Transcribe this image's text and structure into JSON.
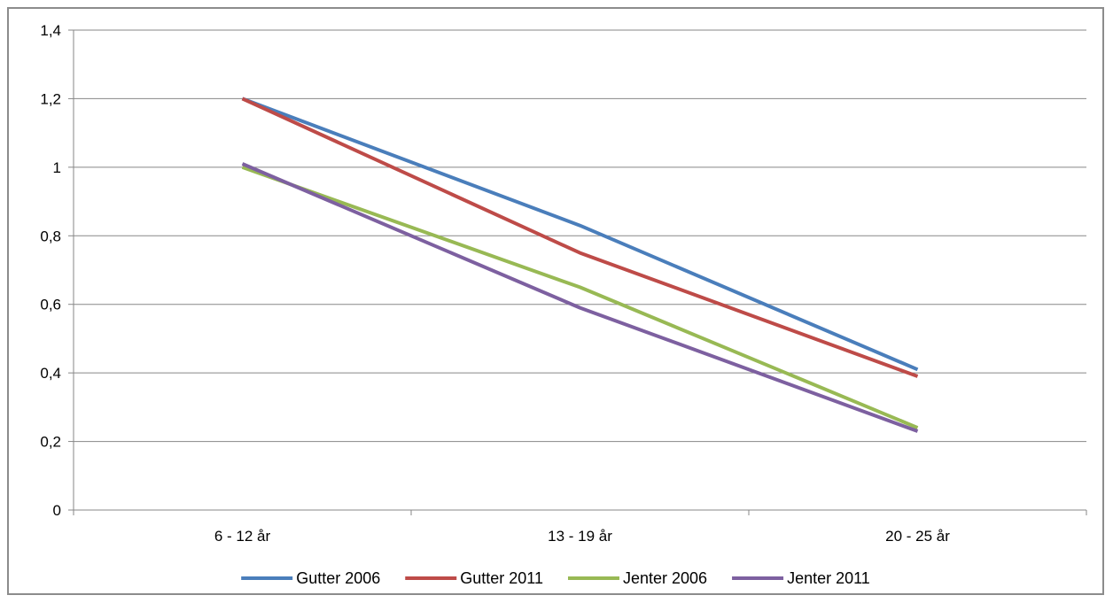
{
  "chart_data": {
    "type": "line",
    "title": "",
    "xlabel": "",
    "ylabel": "",
    "categories": [
      "6 - 12 år",
      "13 - 19 år",
      "20 - 25 år"
    ],
    "ylim": [
      0,
      1.4
    ],
    "y_ticks": [
      0,
      0.2,
      0.4,
      0.6,
      0.8,
      1,
      1.2,
      1.4
    ],
    "y_tick_labels": [
      "0",
      "0,2",
      "0,4",
      "0,6",
      "0,8",
      "1",
      "1,2",
      "1,4"
    ],
    "grid": true,
    "legend_position": "bottom",
    "series": [
      {
        "name": "Gutter 2006",
        "color": "#4a7ebb",
        "values": [
          1.2,
          0.83,
          0.41
        ]
      },
      {
        "name": "Gutter 2011",
        "color": "#be4b48",
        "values": [
          1.2,
          0.75,
          0.39
        ]
      },
      {
        "name": "Jenter 2006",
        "color": "#98b954",
        "values": [
          1.0,
          0.65,
          0.24
        ]
      },
      {
        "name": "Jenter 2011",
        "color": "#7d60a0",
        "values": [
          1.01,
          0.59,
          0.23
        ]
      }
    ]
  }
}
